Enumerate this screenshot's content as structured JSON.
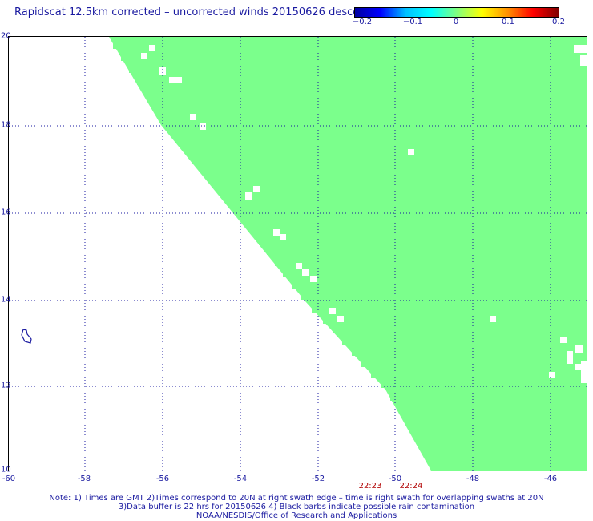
{
  "title": "Rapidscat 12.5km corrected – uncorrected winds 20150626 descending",
  "colorbar": {
    "labels": [
      "−0.2",
      "−0.1",
      "0",
      "0.1",
      "0.2"
    ],
    "values": [
      -0.2,
      -0.1,
      0,
      0.1,
      0.2
    ]
  },
  "map": {
    "lon_range": [
      -60,
      -45.2
    ],
    "lat_range": [
      10,
      20
    ],
    "lat_labels": [
      "20",
      "18",
      "16",
      "14",
      "12",
      "10"
    ],
    "lon_labels": [
      "-60",
      "-58",
      "-56",
      "-54",
      "-52",
      "-50",
      "-48",
      "-46"
    ],
    "swath_color": "#7bff8c",
    "grid_color": "#1a1aa0"
  },
  "time_labels": [
    "22:23",
    "22:24"
  ],
  "notes": {
    "line1": "Note: 1) Times are GMT 2)Times correspond to 20N at right swath edge – time is right swath for overlapping swaths at 20N",
    "line2": "3)Data buffer is 22 hrs for 20150626 4) Black barbs indicate possible rain contamination",
    "line3": "NOAA/NESDIS/Office of Research and Applications"
  }
}
